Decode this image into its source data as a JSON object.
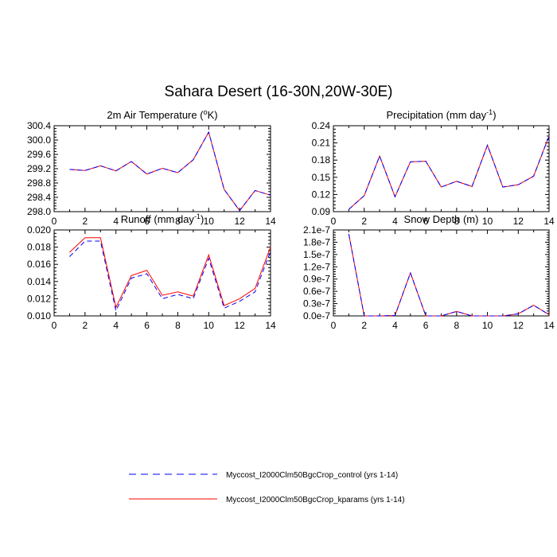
{
  "title": "Sahara Desert (16-30N,20W-30E)",
  "legend": {
    "placement": "bottom",
    "entries": [
      {
        "label": "Myccost_I2000Clm50BgcCrop_control (yrs 1-14)",
        "color": "#0000ff",
        "style": "dashed"
      },
      {
        "label": "Myccost_I2000Clm50BgcCrop_kparams (yrs 1-14)",
        "color": "#ff0000",
        "style": "solid"
      }
    ]
  },
  "chart_data": [
    {
      "type": "line",
      "title": "2m Air Temperature (°K)",
      "title_parts": {
        "main": "2m Air Temperature (",
        "sup": "o",
        "tail": "K)"
      },
      "xlim": [
        0,
        14
      ],
      "ylim": [
        298.0,
        300.4
      ],
      "xticks": [
        "0",
        "2",
        "4",
        "6",
        "8",
        "10",
        "12",
        "14"
      ],
      "yticks": [
        "298.0",
        "298.4",
        "298.8",
        "299.2",
        "299.6",
        "300.0",
        "300.4"
      ],
      "x": [
        1,
        2,
        3,
        4,
        5,
        6,
        7,
        8,
        9,
        10,
        11,
        12,
        13,
        14
      ],
      "series": [
        {
          "name": "Myccost_I2000Clm50BgcCrop_control (yrs 1-14)",
          "values": [
            299.18,
            299.15,
            299.28,
            299.14,
            299.4,
            299.05,
            299.21,
            299.09,
            299.45,
            300.22,
            298.62,
            298.03,
            298.59,
            298.46
          ]
        },
        {
          "name": "Myccost_I2000Clm50BgcCrop_kparams (yrs 1-14)",
          "values": [
            299.18,
            299.15,
            299.28,
            299.14,
            299.4,
            299.05,
            299.21,
            299.09,
            299.45,
            300.22,
            298.62,
            298.03,
            298.59,
            298.46
          ]
        }
      ]
    },
    {
      "type": "line",
      "title": "Precipitation (mm day-1)",
      "title_parts": {
        "main": "Precipitation (mm day",
        "sup": "-1",
        "tail": ")"
      },
      "xlim": [
        0,
        14
      ],
      "ylim": [
        0.09,
        0.24
      ],
      "xticks": [
        "0",
        "2",
        "4",
        "6",
        "8",
        "10",
        "12",
        "14"
      ],
      "yticks": [
        "0.09",
        "0.12",
        "0.15",
        "0.18",
        "0.21",
        "0.24"
      ],
      "x": [
        1,
        2,
        3,
        4,
        5,
        6,
        7,
        8,
        9,
        10,
        11,
        12,
        13,
        14
      ],
      "series": [
        {
          "name": "Myccost_I2000Clm50BgcCrop_control (yrs 1-14)",
          "values": [
            0.094,
            0.118,
            0.187,
            0.116,
            0.177,
            0.178,
            0.133,
            0.143,
            0.134,
            0.206,
            0.133,
            0.137,
            0.152,
            0.222
          ]
        },
        {
          "name": "Myccost_I2000Clm50BgcCrop_kparams (yrs 1-14)",
          "values": [
            0.094,
            0.118,
            0.187,
            0.116,
            0.177,
            0.178,
            0.133,
            0.143,
            0.134,
            0.206,
            0.133,
            0.137,
            0.152,
            0.222
          ]
        }
      ]
    },
    {
      "type": "line",
      "title": "Runoff (mm day-1)",
      "title_parts": {
        "main": "Runoff (mm day",
        "sup": "-1",
        "tail": ")"
      },
      "xlim": [
        0,
        14
      ],
      "ylim": [
        0.01,
        0.02
      ],
      "xticks": [
        "0",
        "2",
        "4",
        "6",
        "8",
        "10",
        "12",
        "14"
      ],
      "yticks": [
        "0.010",
        "0.012",
        "0.014",
        "0.016",
        "0.018",
        "0.020"
      ],
      "x": [
        1,
        2,
        3,
        4,
        5,
        6,
        7,
        8,
        9,
        10,
        11,
        12,
        13,
        14
      ],
      "series": [
        {
          "name": "Myccost_I2000Clm50BgcCrop_control (yrs 1-14)",
          "values": [
            0.0169,
            0.0187,
            0.0187,
            0.0106,
            0.0144,
            0.0149,
            0.012,
            0.0125,
            0.012,
            0.0167,
            0.0109,
            0.0117,
            0.0128,
            0.0175
          ]
        },
        {
          "name": "Myccost_I2000Clm50BgcCrop_kparams (yrs 1-14)",
          "values": [
            0.0174,
            0.0191,
            0.0191,
            0.011,
            0.0147,
            0.0153,
            0.0124,
            0.0128,
            0.0123,
            0.0171,
            0.0112,
            0.012,
            0.0132,
            0.018
          ]
        }
      ]
    },
    {
      "type": "line",
      "title": "Snow Depth (m)",
      "title_parts": {
        "main": "Snow Depth (m)",
        "sup": "",
        "tail": ""
      },
      "xlim": [
        0,
        14
      ],
      "ylim": [
        0,
        2.1e-07
      ],
      "xticks": [
        "0",
        "2",
        "4",
        "6",
        "8",
        "10",
        "12",
        "14"
      ],
      "yticks": [
        "0.0e-7",
        "0.3e-7",
        "0.6e-7",
        "0.9e-7",
        "1.2e-7",
        "1.5e-7",
        "1.8e-7",
        "2.1e-7"
      ],
      "x": [
        1,
        2,
        3,
        4,
        5,
        6,
        7,
        8,
        9,
        10,
        11,
        12,
        13,
        14
      ],
      "series": [
        {
          "name": "Myccost_I2000Clm50BgcCrop_control (yrs 1-14)",
          "values": [
            2e-07,
            0.0,
            0.0,
            1e-09,
            1.05e-07,
            0.0,
            0.0,
            1.1e-08,
            0.0,
            0.0,
            0.0,
            5e-09,
            2.6e-08,
            3e-09
          ]
        },
        {
          "name": "Myccost_I2000Clm50BgcCrop_kparams (yrs 1-14)",
          "values": [
            2e-07,
            0.0,
            0.0,
            1e-09,
            1.05e-07,
            0.0,
            0.0,
            1.1e-08,
            0.0,
            0.0,
            0.0,
            5e-09,
            2.6e-08,
            3e-09
          ]
        }
      ]
    }
  ]
}
